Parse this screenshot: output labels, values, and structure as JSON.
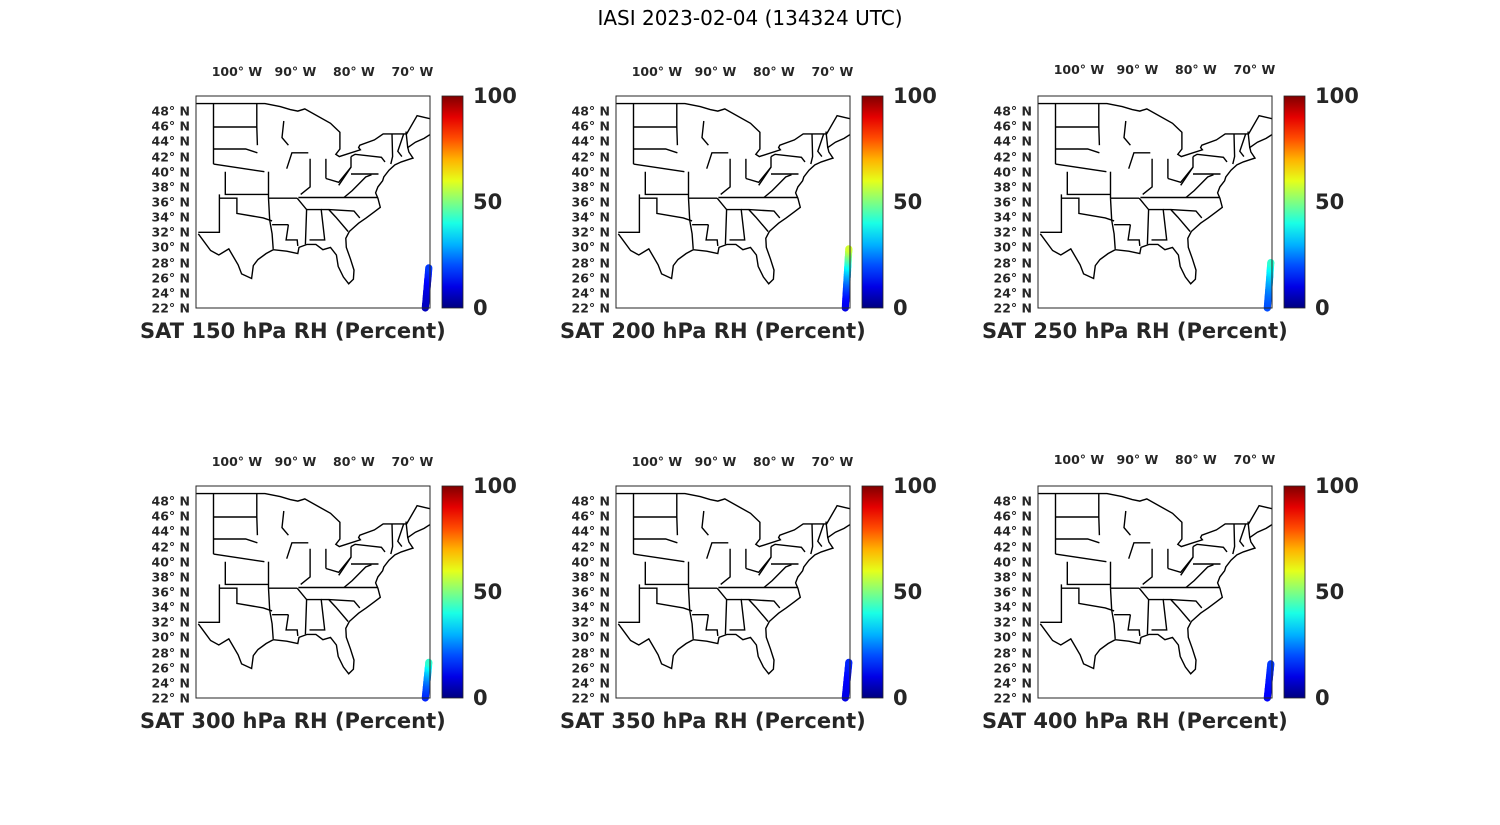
{
  "figure": {
    "title": "IASI 2023-02-04 (134324 UTC)"
  },
  "axes": {
    "lon_ticks": [
      {
        "value": -100,
        "num": "100",
        "suffix": "W"
      },
      {
        "value": -90,
        "num": "90",
        "suffix": "W"
      },
      {
        "value": -80,
        "num": "80",
        "suffix": "W"
      },
      {
        "value": -70,
        "num": "70",
        "suffix": "W"
      }
    ],
    "lat_ticks": [
      {
        "value": 48,
        "num": "48",
        "suffix": "N"
      },
      {
        "value": 46,
        "num": "46",
        "suffix": "N"
      },
      {
        "value": 44,
        "num": "44",
        "suffix": "N"
      },
      {
        "value": 42,
        "num": "42",
        "suffix": "N"
      },
      {
        "value": 40,
        "num": "40",
        "suffix": "N"
      },
      {
        "value": 38,
        "num": "38",
        "suffix": "N"
      },
      {
        "value": 36,
        "num": "36",
        "suffix": "N"
      },
      {
        "value": 34,
        "num": "34",
        "suffix": "N"
      },
      {
        "value": 32,
        "num": "32",
        "suffix": "N"
      },
      {
        "value": 30,
        "num": "30",
        "suffix": "N"
      },
      {
        "value": 28,
        "num": "28",
        "suffix": "N"
      },
      {
        "value": 26,
        "num": "26",
        "suffix": "N"
      },
      {
        "value": 24,
        "num": "24",
        "suffix": "N"
      },
      {
        "value": 22,
        "num": "22",
        "suffix": "N"
      }
    ],
    "colorbar": {
      "ticks": [
        {
          "value": 100,
          "label": "100"
        },
        {
          "value": 50,
          "label": "50"
        },
        {
          "value": 0,
          "label": "0"
        }
      ],
      "range": [
        0,
        100
      ],
      "colormap": "jet"
    }
  },
  "panels": [
    {
      "title": "SAT 150 hPa RH (Percent)",
      "swath_lat_range": [
        22.0,
        27.3
      ],
      "swath_value_range": [
        6,
        18
      ]
    },
    {
      "title": "SAT 200 hPa RH (Percent)",
      "swath_lat_range": [
        22.0,
        29.8
      ],
      "swath_value_range": [
        10,
        58
      ]
    },
    {
      "title": "SAT 250 hPa RH (Percent)",
      "swath_lat_range": [
        22.0,
        28.0
      ],
      "swath_value_range": [
        20,
        42
      ]
    },
    {
      "title": "SAT 300 hPa RH (Percent)",
      "swath_lat_range": [
        22.0,
        26.7
      ],
      "swath_value_range": [
        16,
        42
      ]
    },
    {
      "title": "SAT 350 hPa RH (Percent)",
      "swath_lat_range": [
        22.0,
        26.7
      ],
      "swath_value_range": [
        10,
        16
      ]
    },
    {
      "title": "SAT 400 hPa RH (Percent)",
      "swath_lat_range": [
        22.0,
        26.5
      ],
      "swath_value_range": [
        12,
        18
      ]
    }
  ]
}
